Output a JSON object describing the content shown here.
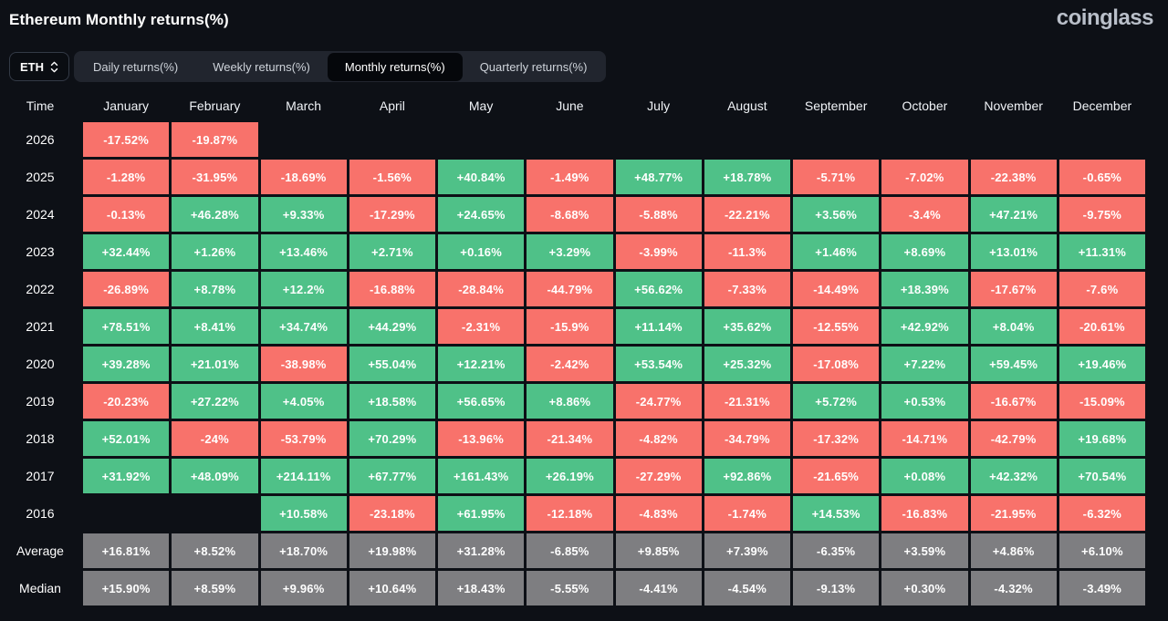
{
  "header": {
    "title": "Ethereum Monthly returns(%)",
    "logo": "coinglass"
  },
  "controls": {
    "symbol_select": {
      "value": "ETH"
    },
    "tabs": [
      {
        "label": "Daily returns(%)",
        "active": false
      },
      {
        "label": "Weekly returns(%)",
        "active": false
      },
      {
        "label": "Monthly returns(%)",
        "active": true
      },
      {
        "label": "Quarterly returns(%)",
        "active": false
      }
    ]
  },
  "chart_data": {
    "type": "heatmap",
    "title": "Ethereum Monthly returns(%)",
    "columns": [
      "Time",
      "January",
      "February",
      "March",
      "April",
      "May",
      "June",
      "July",
      "August",
      "September",
      "October",
      "November",
      "December"
    ],
    "rows": [
      {
        "label": "2026",
        "values": [
          "-17.52%",
          "-19.87%",
          "",
          "",
          "",
          "",
          "",
          "",
          "",
          "",
          "",
          ""
        ]
      },
      {
        "label": "2025",
        "values": [
          "-1.28%",
          "-31.95%",
          "-18.69%",
          "-1.56%",
          "+40.84%",
          "-1.49%",
          "+48.77%",
          "+18.78%",
          "-5.71%",
          "-7.02%",
          "-22.38%",
          "-0.65%"
        ]
      },
      {
        "label": "2024",
        "values": [
          "-0.13%",
          "+46.28%",
          "+9.33%",
          "-17.29%",
          "+24.65%",
          "-8.68%",
          "-5.88%",
          "-22.21%",
          "+3.56%",
          "-3.4%",
          "+47.21%",
          "-9.75%"
        ]
      },
      {
        "label": "2023",
        "values": [
          "+32.44%",
          "+1.26%",
          "+13.46%",
          "+2.71%",
          "+0.16%",
          "+3.29%",
          "-3.99%",
          "-11.3%",
          "+1.46%",
          "+8.69%",
          "+13.01%",
          "+11.31%"
        ]
      },
      {
        "label": "2022",
        "values": [
          "-26.89%",
          "+8.78%",
          "+12.2%",
          "-16.88%",
          "-28.84%",
          "-44.79%",
          "+56.62%",
          "-7.33%",
          "-14.49%",
          "+18.39%",
          "-17.67%",
          "-7.6%"
        ]
      },
      {
        "label": "2021",
        "values": [
          "+78.51%",
          "+8.41%",
          "+34.74%",
          "+44.29%",
          "-2.31%",
          "-15.9%",
          "+11.14%",
          "+35.62%",
          "-12.55%",
          "+42.92%",
          "+8.04%",
          "-20.61%"
        ]
      },
      {
        "label": "2020",
        "values": [
          "+39.28%",
          "+21.01%",
          "-38.98%",
          "+55.04%",
          "+12.21%",
          "-2.42%",
          "+53.54%",
          "+25.32%",
          "-17.08%",
          "+7.22%",
          "+59.45%",
          "+19.46%"
        ]
      },
      {
        "label": "2019",
        "values": [
          "-20.23%",
          "+27.22%",
          "+4.05%",
          "+18.58%",
          "+56.65%",
          "+8.86%",
          "-24.77%",
          "-21.31%",
          "+5.72%",
          "+0.53%",
          "-16.67%",
          "-15.09%"
        ]
      },
      {
        "label": "2018",
        "values": [
          "+52.01%",
          "-24%",
          "-53.79%",
          "+70.29%",
          "-13.96%",
          "-21.34%",
          "-4.82%",
          "-34.79%",
          "-17.32%",
          "-14.71%",
          "-42.79%",
          "+19.68%"
        ]
      },
      {
        "label": "2017",
        "values": [
          "+31.92%",
          "+48.09%",
          "+214.11%",
          "+67.77%",
          "+161.43%",
          "+26.19%",
          "-27.29%",
          "+92.86%",
          "-21.65%",
          "+0.08%",
          "+42.32%",
          "+70.54%"
        ]
      },
      {
        "label": "2016",
        "values": [
          "",
          "",
          "+10.58%",
          "-23.18%",
          "+61.95%",
          "-12.18%",
          "-4.83%",
          "-1.74%",
          "+14.53%",
          "-16.83%",
          "-21.95%",
          "-6.32%"
        ]
      },
      {
        "label": "Average",
        "style": "aggregate",
        "values": [
          "+16.81%",
          "+8.52%",
          "+18.70%",
          "+19.98%",
          "+31.28%",
          "-6.85%",
          "+9.85%",
          "+7.39%",
          "-6.35%",
          "+3.59%",
          "+4.86%",
          "+6.10%"
        ]
      },
      {
        "label": "Median",
        "style": "aggregate",
        "values": [
          "+15.90%",
          "+8.59%",
          "+9.96%",
          "+10.64%",
          "+18.43%",
          "-5.55%",
          "-4.41%",
          "-4.54%",
          "-9.13%",
          "+0.30%",
          "-4.32%",
          "-3.49%"
        ]
      }
    ],
    "colors": {
      "positive": "#4fc188",
      "negative": "#f8726b",
      "aggregate": "#7e7e81",
      "background": "#0d1016"
    },
    "legend_position": "none",
    "grid": false
  }
}
